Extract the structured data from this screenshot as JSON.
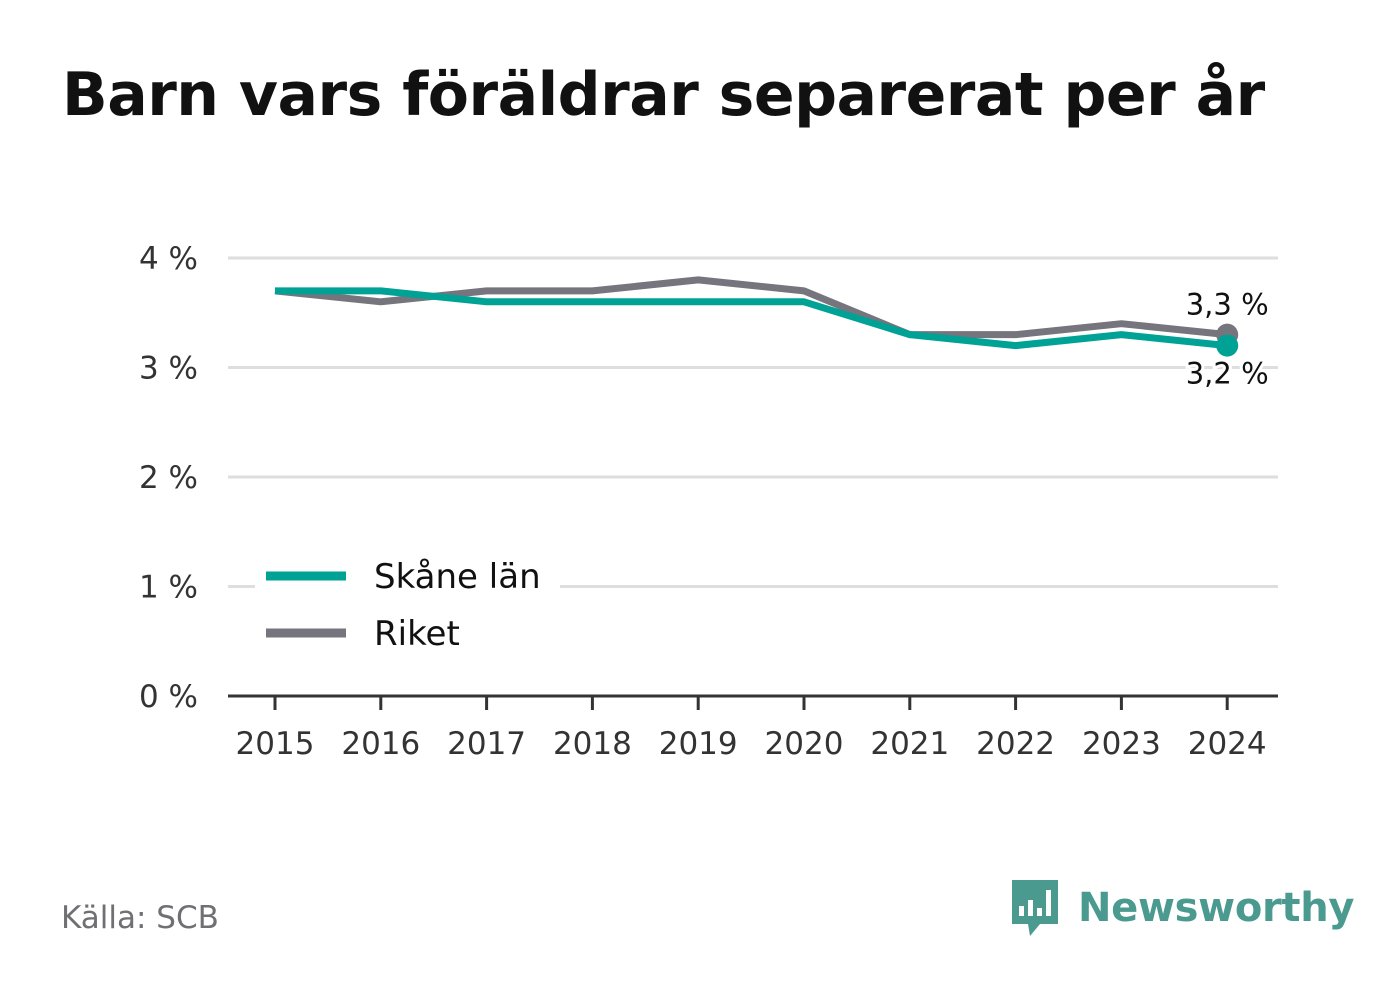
{
  "title": "Barn vars föräldrar separerat per år",
  "source": "Källa: SCB",
  "brand": {
    "name": "Newsworthy",
    "icon": "newsworthy-logo-icon",
    "color": "#4b9a8f"
  },
  "chart_data": {
    "type": "line",
    "title": "Barn vars föräldrar separerat per år",
    "x": [
      "2015",
      "2016",
      "2017",
      "2018",
      "2019",
      "2020",
      "2021",
      "2022",
      "2023",
      "2024"
    ],
    "y_ticks": [
      "0 %",
      "1 %",
      "2 %",
      "3 %",
      "4 %"
    ],
    "ylim": [
      0,
      4
    ],
    "grid": true,
    "legend_position": "bottom-left",
    "series": [
      {
        "name": "Skåne län",
        "color": "#00a296",
        "values": [
          3.7,
          3.7,
          3.6,
          3.6,
          3.6,
          3.6,
          3.3,
          3.2,
          3.3,
          3.2
        ],
        "end_label": "3,2 %"
      },
      {
        "name": "Riket",
        "color": "#76747c",
        "values": [
          3.7,
          3.6,
          3.7,
          3.7,
          3.8,
          3.7,
          3.3,
          3.3,
          3.4,
          3.3
        ],
        "end_label": "3,3 %"
      }
    ]
  }
}
